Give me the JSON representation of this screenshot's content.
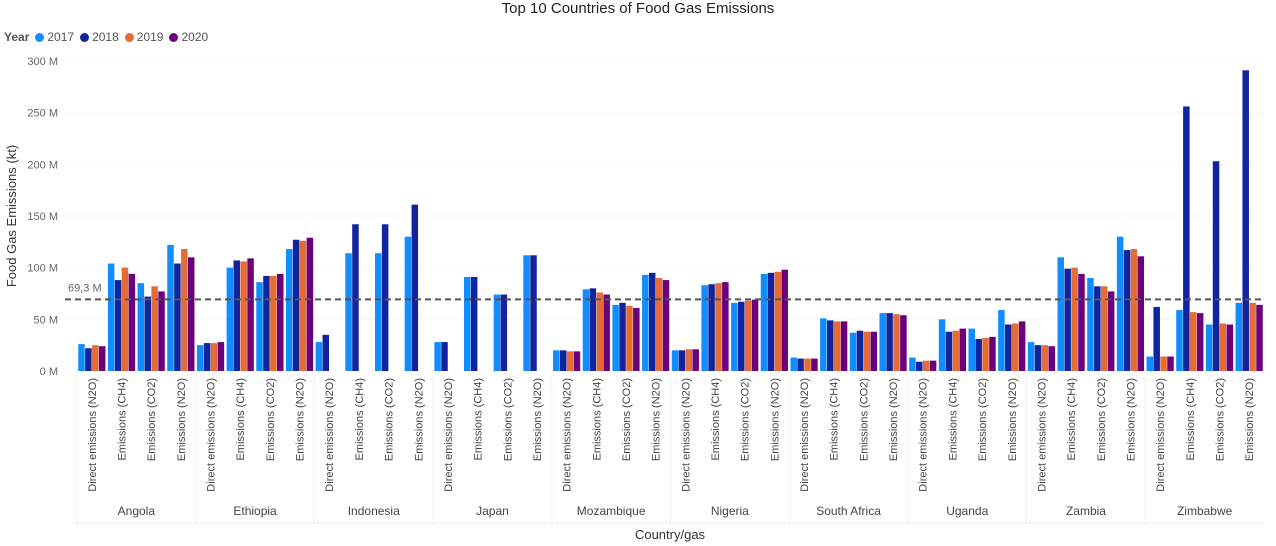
{
  "chart_data": {
    "type": "bar",
    "title": "Top 10 Countries of Food Gas Emissions",
    "xlabel": "Country/gas",
    "ylabel": "Food Gas Emissions (kt)",
    "ylim": [
      0,
      300000000
    ],
    "yticks": [
      "0 M",
      "50 M",
      "100 M",
      "150 M",
      "200 M",
      "250 M",
      "300 M"
    ],
    "legend_title": "Year",
    "legend_position": "top-left",
    "reference_line": {
      "label": "69,3 M",
      "value": 69300000,
      "style": "dashed"
    },
    "grid": "dotted horizontal",
    "series": [
      {
        "name": "2017",
        "color": "#118DFF"
      },
      {
        "name": "2018",
        "color": "#12239E"
      },
      {
        "name": "2019",
        "color": "#E66C37"
      },
      {
        "name": "2020",
        "color": "#6B007B"
      }
    ],
    "groups": [
      {
        "country": "Angola",
        "gases": [
          {
            "label": "Direct emissions (N2O)",
            "values": [
              26,
              22,
              25,
              24
            ]
          },
          {
            "label": "Emissions (CH4)",
            "values": [
              104,
              88,
              100,
              94
            ]
          },
          {
            "label": "Emissions (CO2)",
            "values": [
              85,
              72,
              82,
              77
            ]
          },
          {
            "label": "Emissions (N2O)",
            "values": [
              122,
              104,
              118,
              110
            ]
          }
        ]
      },
      {
        "country": "Ethiopia",
        "gases": [
          {
            "label": "Direct emissions (N2O)",
            "values": [
              25,
              27,
              27,
              28
            ]
          },
          {
            "label": "Emissions (CH4)",
            "values": [
              100,
              107,
              106,
              109
            ]
          },
          {
            "label": "Emissions (CO2)",
            "values": [
              86,
              92,
              92,
              94
            ]
          },
          {
            "label": "Emissions (N2O)",
            "values": [
              118,
              127,
              126,
              129
            ]
          }
        ]
      },
      {
        "country": "Indonesia",
        "gases": [
          {
            "label": "Direct emissions (N2O)",
            "values": [
              28,
              35,
              null,
              null
            ]
          },
          {
            "label": "Emissions (CH4)",
            "values": [
              114,
              142,
              null,
              null
            ]
          },
          {
            "label": "Emissions (CO2)",
            "values": [
              114,
              142,
              null,
              null
            ]
          },
          {
            "label": "Emissions (N2O)",
            "values": [
              130,
              161,
              null,
              null
            ]
          }
        ]
      },
      {
        "country": "Japan",
        "gases": [
          {
            "label": "Direct emissions (N2O)",
            "values": [
              28,
              28,
              null,
              null
            ]
          },
          {
            "label": "Emissions (CH4)",
            "values": [
              91,
              91,
              null,
              null
            ]
          },
          {
            "label": "Emissions (CO2)",
            "values": [
              74,
              74,
              null,
              null
            ]
          },
          {
            "label": "Emissions (N2O)",
            "values": [
              112,
              112,
              null,
              null
            ]
          }
        ]
      },
      {
        "country": "Mozambique",
        "gases": [
          {
            "label": "Direct emissions (N2O)",
            "values": [
              20,
              20,
              19,
              19
            ]
          },
          {
            "label": "Emissions (CH4)",
            "values": [
              79,
              80,
              76,
              74
            ]
          },
          {
            "label": "Emissions (CO2)",
            "values": [
              64,
              66,
              63,
              61
            ]
          },
          {
            "label": "Emissions (N2O)",
            "values": [
              93,
              95,
              90,
              88
            ]
          }
        ]
      },
      {
        "country": "Nigeria",
        "gases": [
          {
            "label": "Direct emissions (N2O)",
            "values": [
              20,
              20,
              21,
              21
            ]
          },
          {
            "label": "Emissions (CH4)",
            "values": [
              83,
              84,
              85,
              86
            ]
          },
          {
            "label": "Emissions (CO2)",
            "values": [
              66,
              67,
              68,
              69
            ]
          },
          {
            "label": "Emissions (N2O)",
            "values": [
              94,
              95,
              96,
              98
            ]
          }
        ]
      },
      {
        "country": "South Africa",
        "gases": [
          {
            "label": "Direct emissions (N2O)",
            "values": [
              13,
              12,
              12,
              12
            ]
          },
          {
            "label": "Emissions (CH4)",
            "values": [
              51,
              49,
              48,
              48
            ]
          },
          {
            "label": "Emissions (CO2)",
            "values": [
              37,
              39,
              38,
              38
            ]
          },
          {
            "label": "Emissions (N2O)",
            "values": [
              56,
              56,
              55,
              54
            ]
          }
        ]
      },
      {
        "country": "Uganda",
        "gases": [
          {
            "label": "Direct emissions (N2O)",
            "values": [
              13,
              9,
              10,
              10
            ]
          },
          {
            "label": "Emissions (CH4)",
            "values": [
              50,
              38,
              39,
              41
            ]
          },
          {
            "label": "Emissions (CO2)",
            "values": [
              41,
              31,
              32,
              33
            ]
          },
          {
            "label": "Emissions (N2O)",
            "values": [
              59,
              45,
              46,
              48
            ]
          }
        ]
      },
      {
        "country": "Zambia",
        "gases": [
          {
            "label": "Direct emissions (N2O)",
            "values": [
              28,
              25,
              25,
              24
            ]
          },
          {
            "label": "Emissions (CH4)",
            "values": [
              110,
              99,
              100,
              94
            ]
          },
          {
            "label": "Emissions (CO2)",
            "values": [
              90,
              82,
              82,
              77
            ]
          },
          {
            "label": "Emissions (N2O)",
            "values": [
              130,
              117,
              118,
              111
            ]
          }
        ]
      },
      {
        "country": "Zimbabwe",
        "gases": [
          {
            "label": "Direct emissions (N2O)",
            "values": [
              14,
              62,
              14,
              14
            ]
          },
          {
            "label": "Emissions (CH4)",
            "values": [
              59,
              256,
              57,
              56
            ]
          },
          {
            "label": "Emissions (CO2)",
            "values": [
              45,
              203,
              46,
              45
            ]
          },
          {
            "label": "Emissions (N2O)",
            "values": [
              66,
              291,
              66,
              64
            ]
          }
        ]
      }
    ],
    "value_unit_note": "values in millions of kt"
  }
}
